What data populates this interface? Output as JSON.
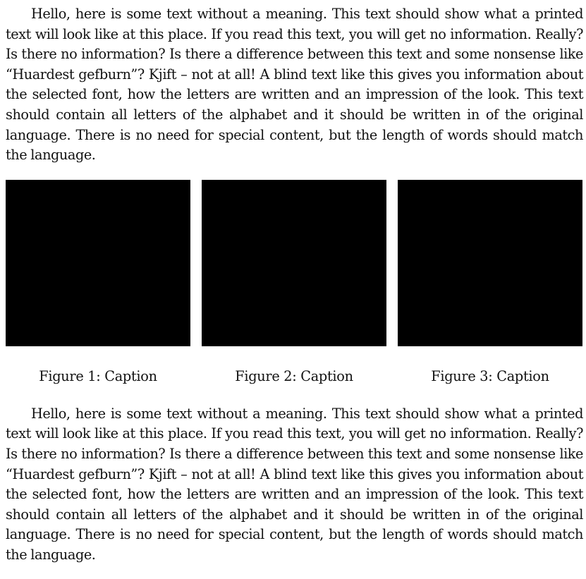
{
  "paragraphs": [
    "Hello, here is some text without a meaning. This text should show what a printed text will look like at this place. If you read this text, you will get no information. Really? Is there no information? Is there a difference between this text and some nonsense like “Huardest gefburn”? Kjift – not at all! A blind text like this gives you information about the selected font, how the letters are written and an impression of the look. This text should contain all letters of the alphabet and it should be written in of the original language. There is no need for special content, but the length of words should match the language.",
    "Hello, here is some text without a meaning. This text should show what a printed text will look like at this place. If you read this text, you will get no information. Really? Is there no information? Is there a difference between this text and some nonsense like “Huardest gefburn”? Kjift – not at all! A blind text like this gives you information about the selected font, how the letters are written and an impression of the look. This text should contain all letters of the alphabet and it should be written in of the original language. There is no need for special content, but the length of words should match the language."
  ],
  "figures": [
    {
      "caption": "Figure 1: Caption",
      "fill": "#000000"
    },
    {
      "caption": "Figure 2: Caption",
      "fill": "#000000"
    },
    {
      "caption": "Figure 3: Caption",
      "fill": "#000000"
    }
  ]
}
